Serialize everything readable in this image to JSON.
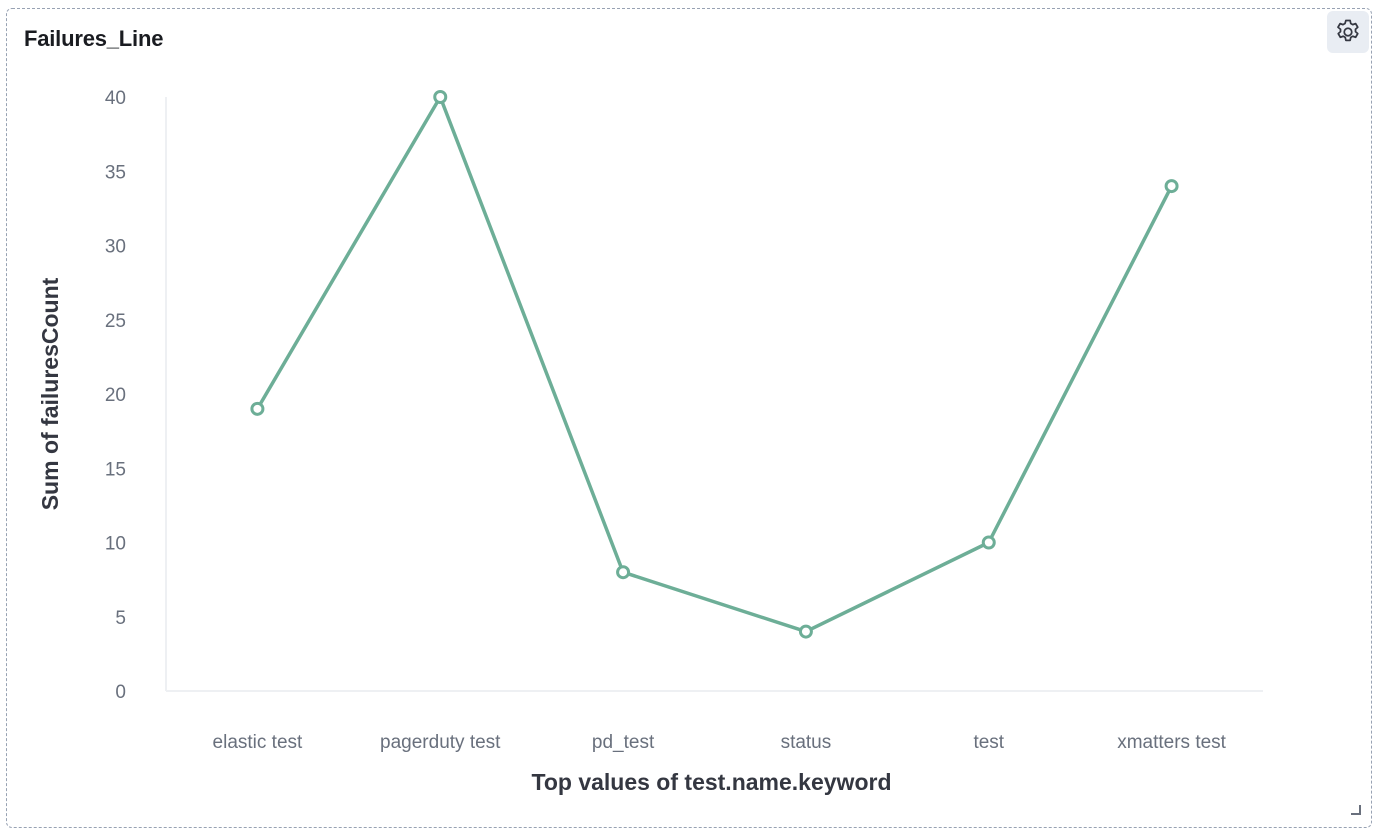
{
  "panel": {
    "title": "Failures_Line",
    "settings_icon": "gear-icon",
    "resize_icon": "resize-corner-icon"
  },
  "chart_data": {
    "type": "line",
    "title": "Failures_Line",
    "categories": [
      "elastic test",
      "pagerduty test",
      "pd_test",
      "status",
      "test",
      "xmatters test"
    ],
    "series": [
      {
        "values": [
          19,
          40,
          8,
          4,
          10,
          34
        ],
        "color": "#6dae97"
      }
    ],
    "xlabel": "Top values of test.name.keyword",
    "ylabel": "Sum of failuresCount",
    "ylim": [
      0,
      40
    ],
    "yticks": [
      0,
      5,
      10,
      15,
      20,
      25,
      30,
      35,
      40
    ],
    "grid": false,
    "legend": "none"
  }
}
